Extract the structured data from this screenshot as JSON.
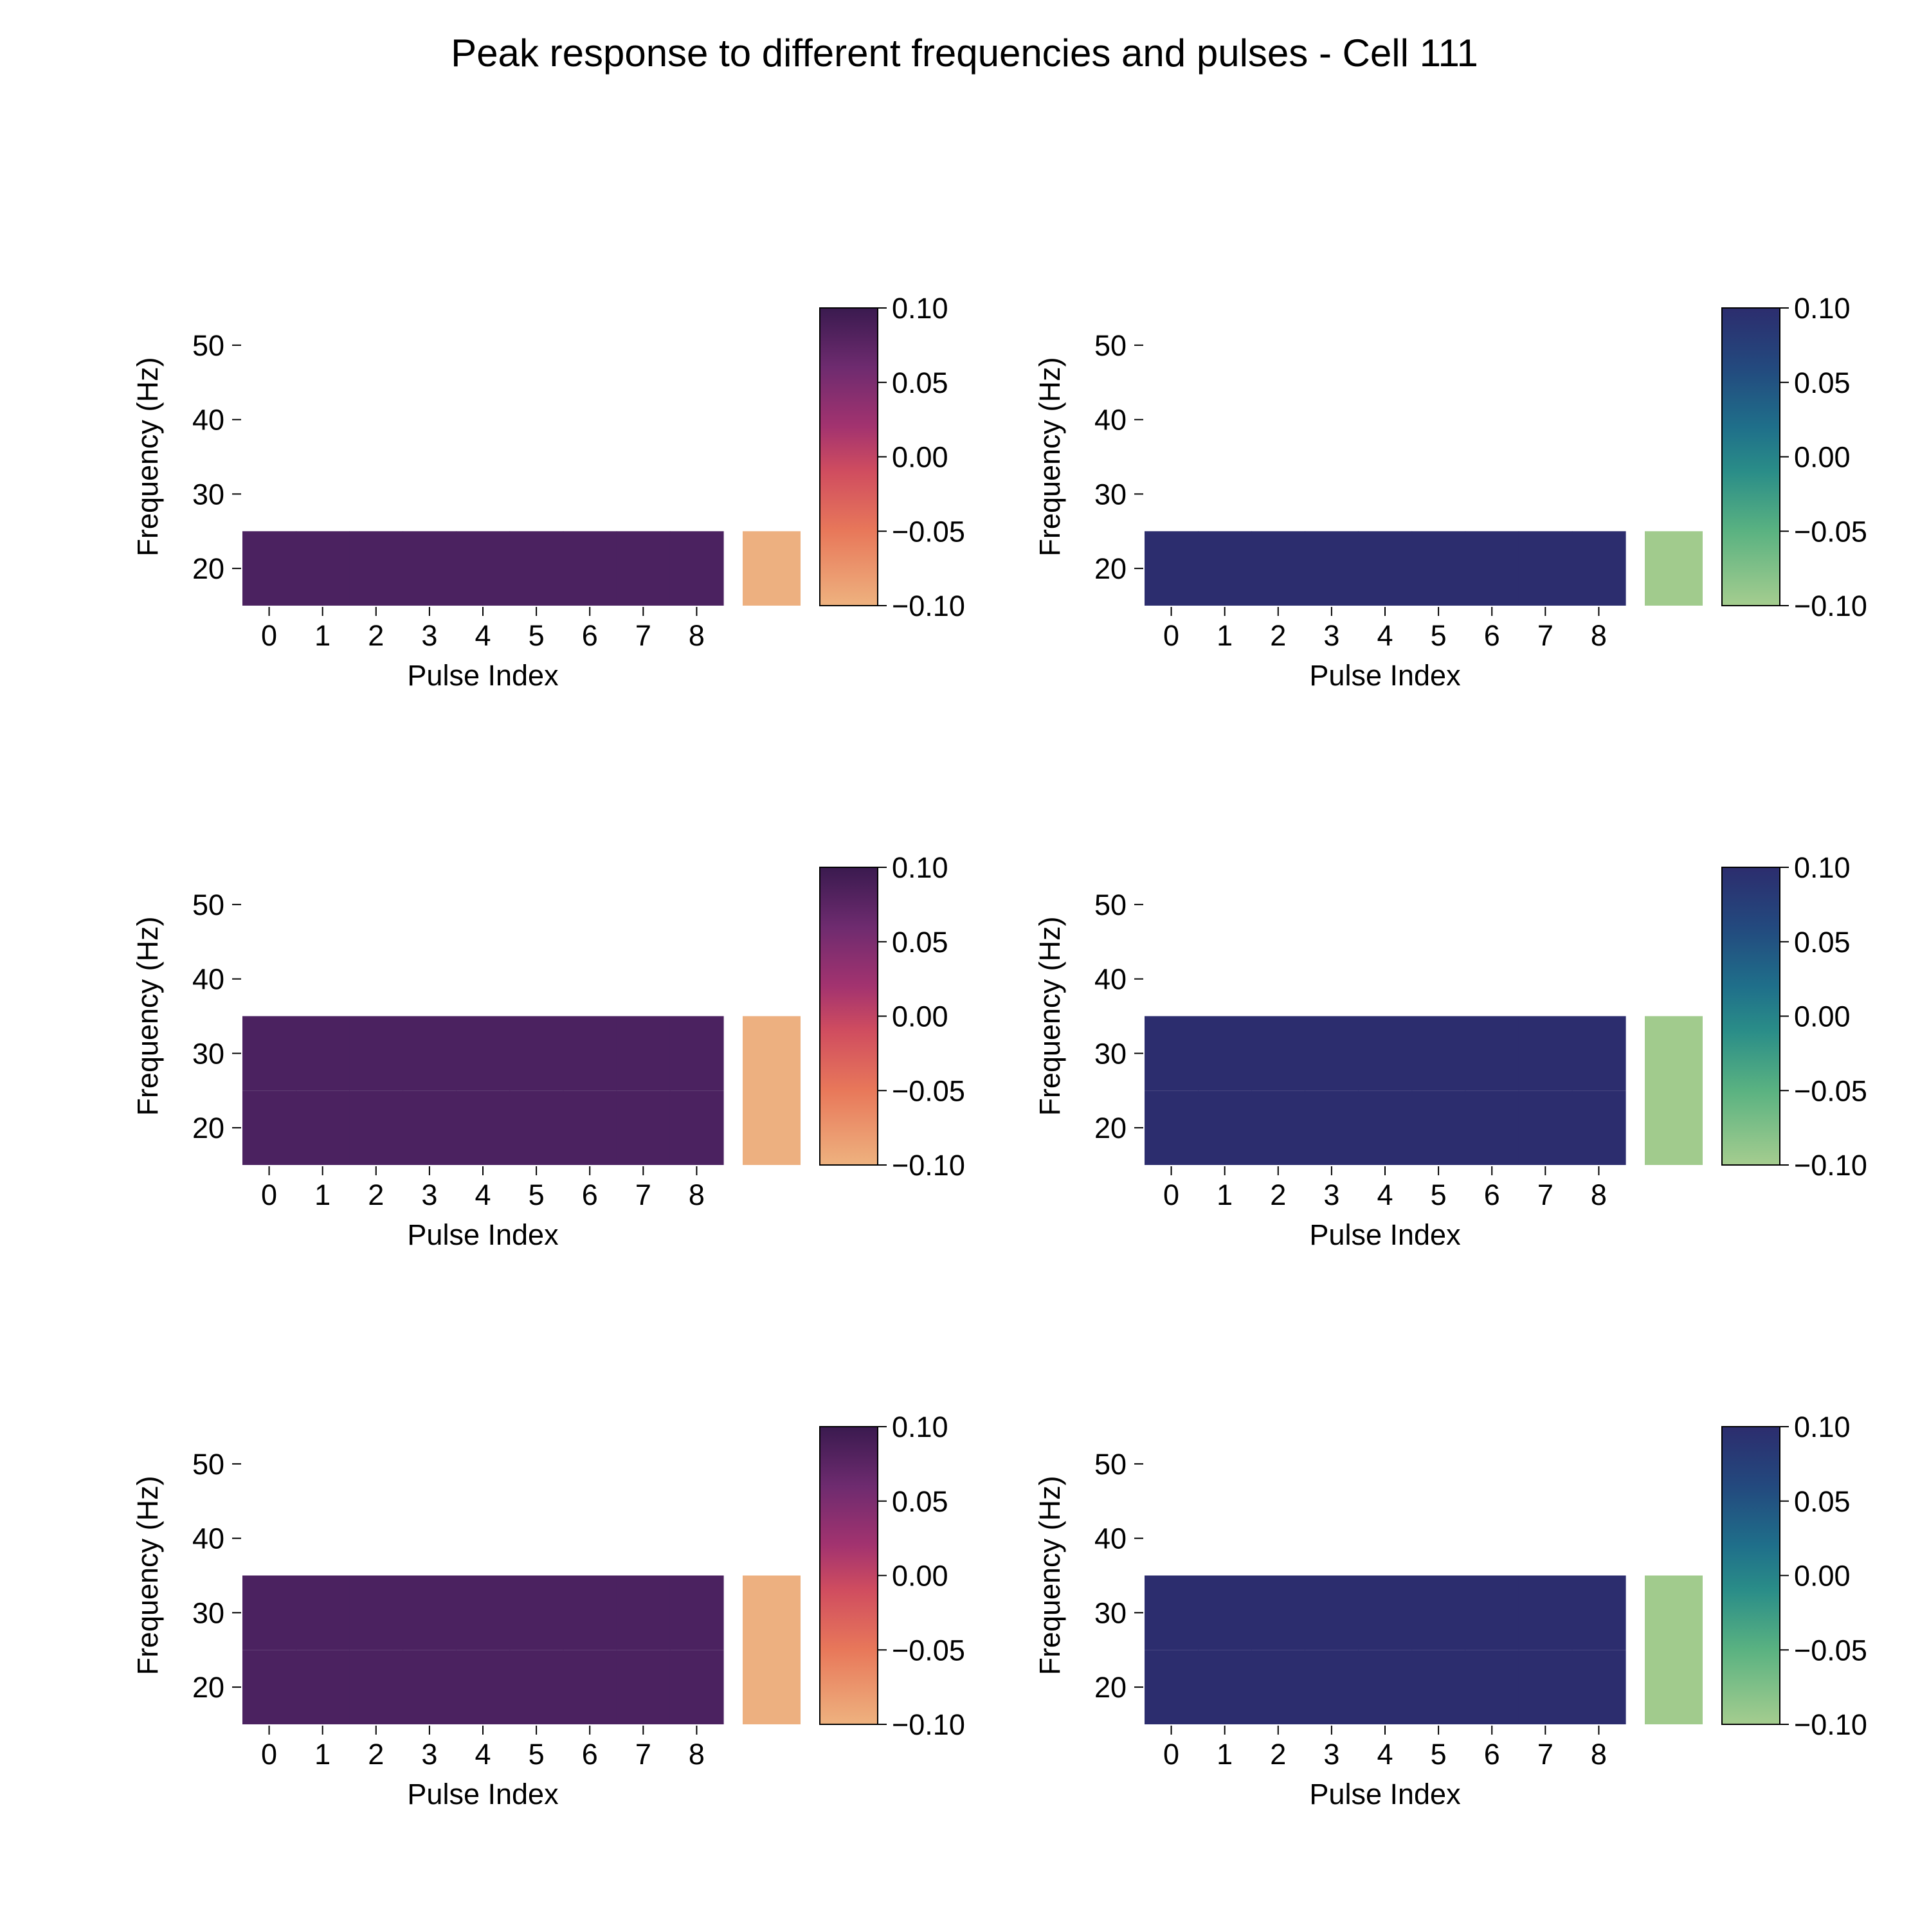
{
  "title": "Peak response to different frequencies and pulses - Cell 111",
  "colors": {
    "magma_top": "#4b2260",
    "magma_cells": "#4b2260",
    "magma_side": "#edb080",
    "crest_top": "#2c2d6e",
    "crest_cells": "#2c2d6e",
    "crest_side": "#a1cb8d"
  },
  "chart_data": [
    {
      "type": "heatmap",
      "colormap": "flare-magma",
      "xlabel": "Pulse Index",
      "ylabel": "Frequency (Hz)",
      "x_ticks": [
        "0",
        "1",
        "2",
        "3",
        "4",
        "5",
        "6",
        "7",
        "8"
      ],
      "y_ticks": [
        20,
        30,
        40,
        50
      ],
      "ylim": [
        15,
        55
      ],
      "rows": [
        {
          "frequency": 20,
          "values": [
            0,
            0,
            0,
            0,
            0,
            0,
            0,
            0,
            0
          ]
        }
      ],
      "side_panel_range": [
        15,
        25
      ],
      "colorbar": {
        "min": -0.1,
        "max": 0.1,
        "ticks": [
          "0.10",
          "0.05",
          "0.00",
          "−0.05",
          "−0.10"
        ]
      }
    },
    {
      "type": "heatmap",
      "colormap": "crest",
      "xlabel": "Pulse Index",
      "ylabel": "Frequency (Hz)",
      "x_ticks": [
        "0",
        "1",
        "2",
        "3",
        "4",
        "5",
        "6",
        "7",
        "8"
      ],
      "y_ticks": [
        20,
        30,
        40,
        50
      ],
      "ylim": [
        15,
        55
      ],
      "rows": [
        {
          "frequency": 20,
          "values": [
            0,
            0,
            0,
            0,
            0,
            0,
            0,
            0,
            0
          ]
        }
      ],
      "side_panel_range": [
        15,
        25
      ],
      "colorbar": {
        "min": -0.1,
        "max": 0.1,
        "ticks": [
          "0.10",
          "0.05",
          "0.00",
          "−0.05",
          "−0.10"
        ]
      }
    },
    {
      "type": "heatmap",
      "colormap": "flare-magma",
      "xlabel": "Pulse Index",
      "ylabel": "Frequency (Hz)",
      "x_ticks": [
        "0",
        "1",
        "2",
        "3",
        "4",
        "5",
        "6",
        "7",
        "8"
      ],
      "y_ticks": [
        20,
        30,
        40,
        50
      ],
      "ylim": [
        15,
        55
      ],
      "rows": [
        {
          "frequency": 20,
          "values": [
            0,
            0,
            0,
            0,
            0,
            0,
            0,
            0,
            0
          ]
        },
        {
          "frequency": 30,
          "values": [
            0,
            0,
            0,
            0,
            0,
            0,
            0,
            0,
            0
          ]
        }
      ],
      "side_panel_range": [
        15,
        35
      ],
      "colorbar": {
        "min": -0.1,
        "max": 0.1,
        "ticks": [
          "0.10",
          "0.05",
          "0.00",
          "−0.05",
          "−0.10"
        ]
      }
    },
    {
      "type": "heatmap",
      "colormap": "crest",
      "xlabel": "Pulse Index",
      "ylabel": "Frequency (Hz)",
      "x_ticks": [
        "0",
        "1",
        "2",
        "3",
        "4",
        "5",
        "6",
        "7",
        "8"
      ],
      "y_ticks": [
        20,
        30,
        40,
        50
      ],
      "ylim": [
        15,
        55
      ],
      "rows": [
        {
          "frequency": 20,
          "values": [
            0,
            0,
            0,
            0,
            0,
            0,
            0,
            0,
            0
          ]
        },
        {
          "frequency": 30,
          "values": [
            0,
            0,
            0,
            0,
            0,
            0,
            0,
            0,
            0
          ]
        }
      ],
      "side_panel_range": [
        15,
        35
      ],
      "colorbar": {
        "min": -0.1,
        "max": 0.1,
        "ticks": [
          "0.10",
          "0.05",
          "0.00",
          "−0.05",
          "−0.10"
        ]
      }
    },
    {
      "type": "heatmap",
      "colormap": "flare-magma",
      "xlabel": "Pulse Index",
      "ylabel": "Frequency (Hz)",
      "x_ticks": [
        "0",
        "1",
        "2",
        "3",
        "4",
        "5",
        "6",
        "7",
        "8"
      ],
      "y_ticks": [
        20,
        30,
        40,
        50
      ],
      "ylim": [
        15,
        55
      ],
      "rows": [
        {
          "frequency": 20,
          "values": [
            0,
            0,
            0,
            0,
            0,
            0,
            0,
            0,
            0
          ]
        },
        {
          "frequency": 30,
          "values": [
            0,
            0,
            0,
            0,
            0,
            0,
            0,
            0,
            0
          ]
        }
      ],
      "side_panel_range": [
        15,
        35
      ],
      "colorbar": {
        "min": -0.1,
        "max": 0.1,
        "ticks": [
          "0.10",
          "0.05",
          "0.00",
          "−0.05",
          "−0.10"
        ]
      }
    },
    {
      "type": "heatmap",
      "colormap": "crest",
      "xlabel": "Pulse Index",
      "ylabel": "Frequency (Hz)",
      "x_ticks": [
        "0",
        "1",
        "2",
        "3",
        "4",
        "5",
        "6",
        "7",
        "8"
      ],
      "y_ticks": [
        20,
        30,
        40,
        50
      ],
      "ylim": [
        15,
        55
      ],
      "rows": [
        {
          "frequency": 20,
          "values": [
            0,
            0,
            0,
            0,
            0,
            0,
            0,
            0,
            0
          ]
        },
        {
          "frequency": 30,
          "values": [
            0,
            0,
            0,
            0,
            0,
            0,
            0,
            0,
            0
          ]
        }
      ],
      "side_panel_range": [
        15,
        35
      ],
      "colorbar": {
        "min": -0.1,
        "max": 0.1,
        "ticks": [
          "0.10",
          "0.05",
          "0.00",
          "−0.05",
          "−0.10"
        ]
      }
    }
  ]
}
